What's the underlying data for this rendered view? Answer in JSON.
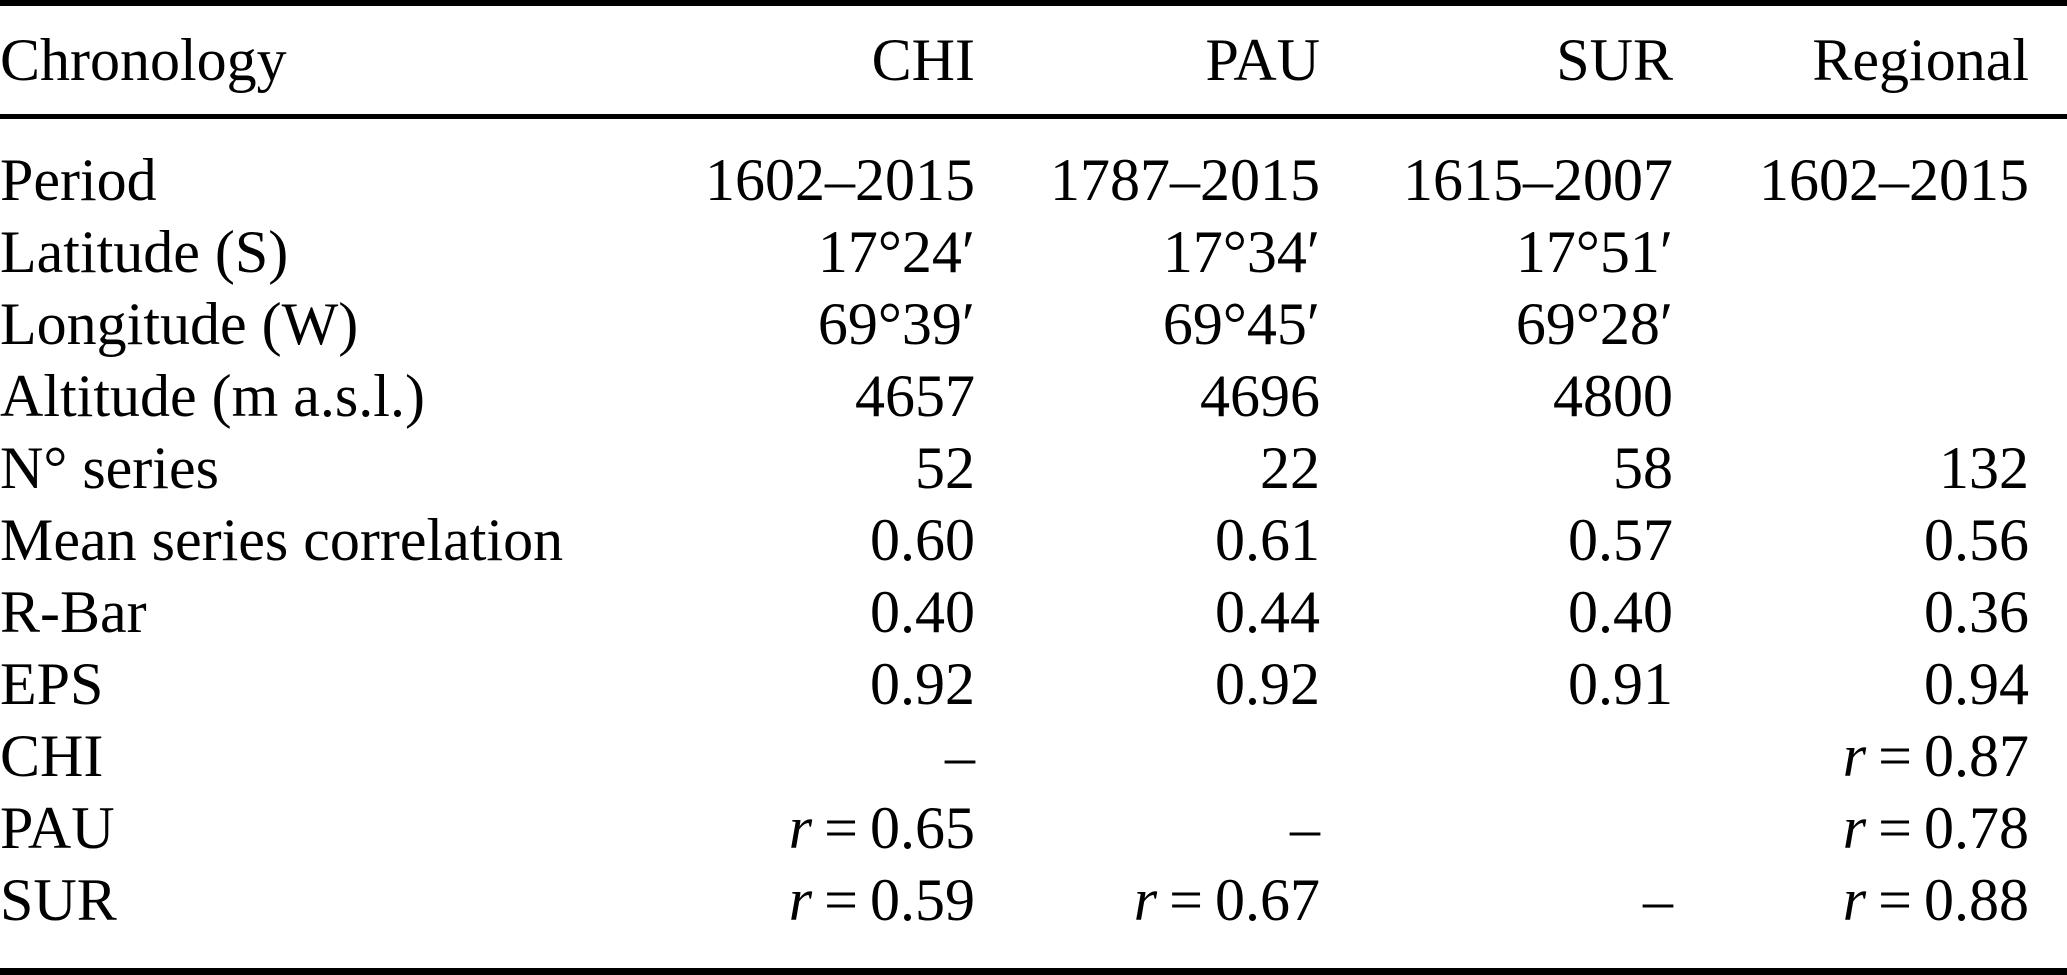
{
  "chart_data": {
    "type": "table",
    "columns": [
      "Chronology",
      "CHI",
      "PAU",
      "SUR",
      "Regional"
    ],
    "rows": [
      {
        "label": "Period",
        "values": [
          "1602–2015",
          "1787–2015",
          "1615–2007",
          "1602–2015"
        ]
      },
      {
        "label": "Latitude (S)",
        "values": [
          "17°24′",
          "17°34′",
          "17°51′",
          ""
        ]
      },
      {
        "label": "Longitude (W)",
        "values": [
          "69°39′",
          "69°45′",
          "69°28′",
          ""
        ]
      },
      {
        "label": "Altitude (m a.s.l.)",
        "values": [
          "4657",
          "4696",
          "4800",
          ""
        ]
      },
      {
        "label": "N° series",
        "values": [
          "52",
          "22",
          "58",
          "132"
        ]
      },
      {
        "label": "Mean series correlation",
        "values": [
          "0.60",
          "0.61",
          "0.57",
          "0.56"
        ]
      },
      {
        "label": "R-Bar",
        "values": [
          "0.40",
          "0.44",
          "0.40",
          "0.36"
        ]
      },
      {
        "label": "EPS",
        "values": [
          "0.92",
          "0.92",
          "0.91",
          "0.94"
        ]
      },
      {
        "label": "CHI",
        "values": [
          "–",
          "",
          "",
          "r = 0.87"
        ]
      },
      {
        "label": "PAU",
        "values": [
          "r = 0.65",
          "–",
          "",
          "r = 0.78"
        ]
      },
      {
        "label": "SUR",
        "values": [
          "r = 0.59",
          "r = 0.67",
          "–",
          "r = 0.88"
        ]
      }
    ],
    "colors": {
      "text": "#000000",
      "background": "#ffffff",
      "rule": "#000000"
    }
  }
}
